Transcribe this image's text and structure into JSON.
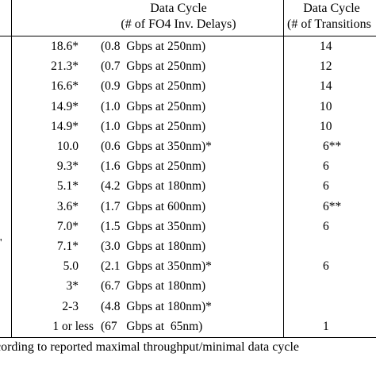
{
  "header": {
    "col_delay_line1": "Data Cycle",
    "col_delay_line2": "(# of FO4 Inv. Delays)",
    "col_trans_line1": "Data Cycle",
    "col_trans_line2": "(# of Transitions"
  },
  "rows": [
    {
      "delay": "18.6*",
      "rate": "(0.8  Gbps at 250nm)",
      "transitions": "14"
    },
    {
      "delay": "21.3*",
      "rate": "(0.7  Gbps at 250nm)",
      "transitions": "12"
    },
    {
      "delay": "16.6*",
      "rate": "(0.9  Gbps at 250nm)",
      "transitions": "14"
    },
    {
      "delay": "14.9*",
      "rate": "(1.0  Gbps at 250nm)",
      "transitions": "10"
    },
    {
      "delay": "14.9*",
      "rate": "(1.0  Gbps at 250nm)",
      "transitions": "10"
    },
    {
      "delay": "10.0",
      "rate": "(0.6  Gbps at 350nm)*",
      "transitions": "6**"
    },
    {
      "delay": "9.3*",
      "rate": "(1.6  Gbps at 250nm)",
      "transitions": "6"
    },
    {
      "delay": "5.1*",
      "rate": "(4.2  Gbps at 180nm)",
      "transitions": "6"
    },
    {
      "delay": "3.6*",
      "rate": "(1.7  Gbps at 600nm)",
      "transitions": "6**"
    },
    {
      "delay": "7.0*",
      "rate": "(1.5  Gbps at 350nm)",
      "transitions": "6"
    },
    {
      "delay": "7.1*",
      "rate": "(3.0  Gbps at 180nm)",
      "transitions": ""
    },
    {
      "delay": "5.0",
      "rate": "(2.1  Gbps at 350nm)*",
      "transitions": "6"
    },
    {
      "delay": "3*",
      "rate": "(6.7  Gbps at 180nm)",
      "transitions": ""
    },
    {
      "delay": "2-3",
      "rate": "(4.8  Gbps at 180nm)*",
      "transitions": ""
    },
    {
      "delay": "1 or less",
      "rate": "(67   Gbps at  65nm)",
      "transitions": "1"
    }
  ],
  "footnote": "cording to reported maximal throughput/minimal data cycle",
  "stray_mark": "'"
}
